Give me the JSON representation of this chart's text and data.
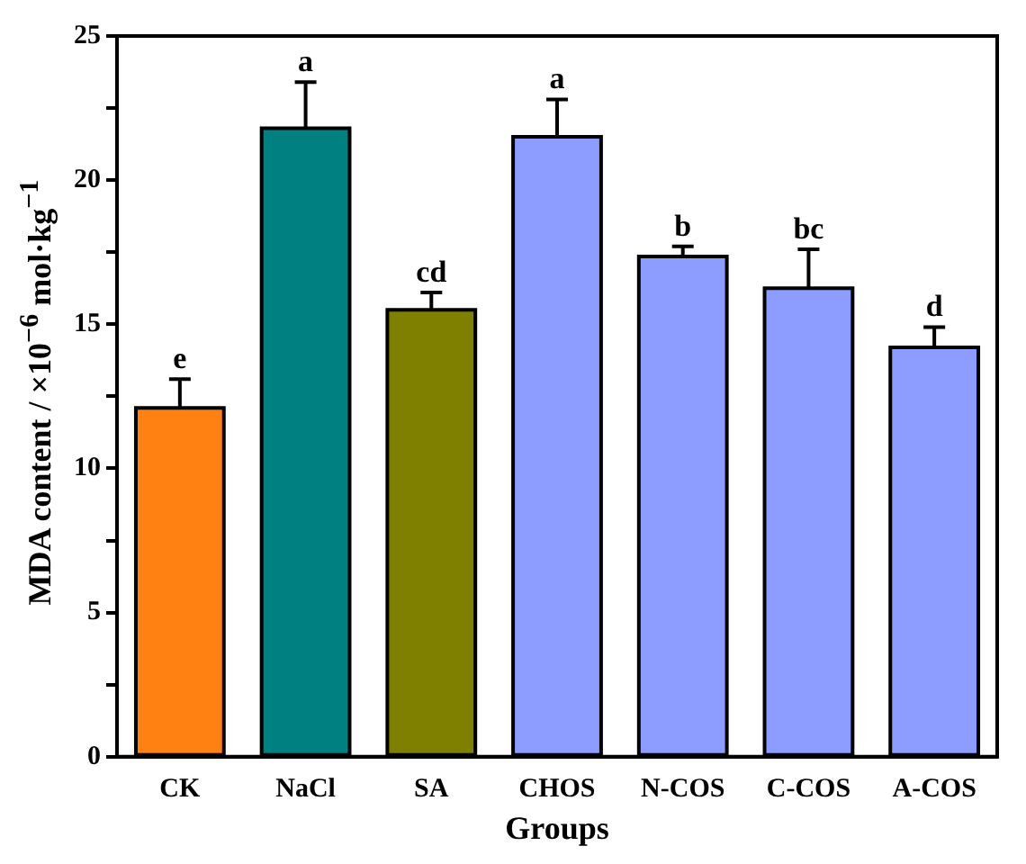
{
  "chart_data": {
    "type": "bar",
    "xlabel": "Groups",
    "ylabel": "MDA content / ×10$^{−6}$ mol·kg$^{−1}$",
    "categories": [
      "CK",
      "NaCl",
      "SA",
      "CHOS",
      "N-COS",
      "C-COS",
      "A-COS"
    ],
    "values": [
      12.1,
      21.8,
      15.5,
      21.5,
      17.35,
      16.25,
      14.2
    ],
    "errors": [
      1.0,
      1.6,
      0.6,
      1.3,
      0.35,
      1.35,
      0.7
    ],
    "colors": [
      "#ff8112",
      "#008080",
      "#808000",
      "#8c9cff",
      "#8c9cff",
      "#8c9cff",
      "#8c9cff"
    ],
    "ylim": [
      0,
      25
    ],
    "yticks": [
      0,
      {
        "value": 2.5,
        "label": null
      },
      5,
      {
        "value": 7.5,
        "label": null
      },
      10,
      {
        "value": 12.5,
        "label": null
      },
      15,
      {
        "value": 17.5,
        "label": null
      },
      20,
      {
        "value": 22.5,
        "label": null
      },
      25
    ],
    "annotations": [
      {
        "text": "e",
        "x": "CK",
        "y": 13.1
      },
      {
        "text": "a",
        "x": "NaCl",
        "y": 23.4
      },
      {
        "text": "cd",
        "x": "SA",
        "y": 16.1
      },
      {
        "text": "a",
        "x": "CHOS",
        "y": 22.8
      },
      {
        "text": "b",
        "x": "N-COS",
        "y": 17.7
      },
      {
        "text": "bc",
        "x": "C-COS",
        "y": 17.6
      },
      {
        "text": "d",
        "x": "A-COS",
        "y": 14.9
      }
    ]
  }
}
